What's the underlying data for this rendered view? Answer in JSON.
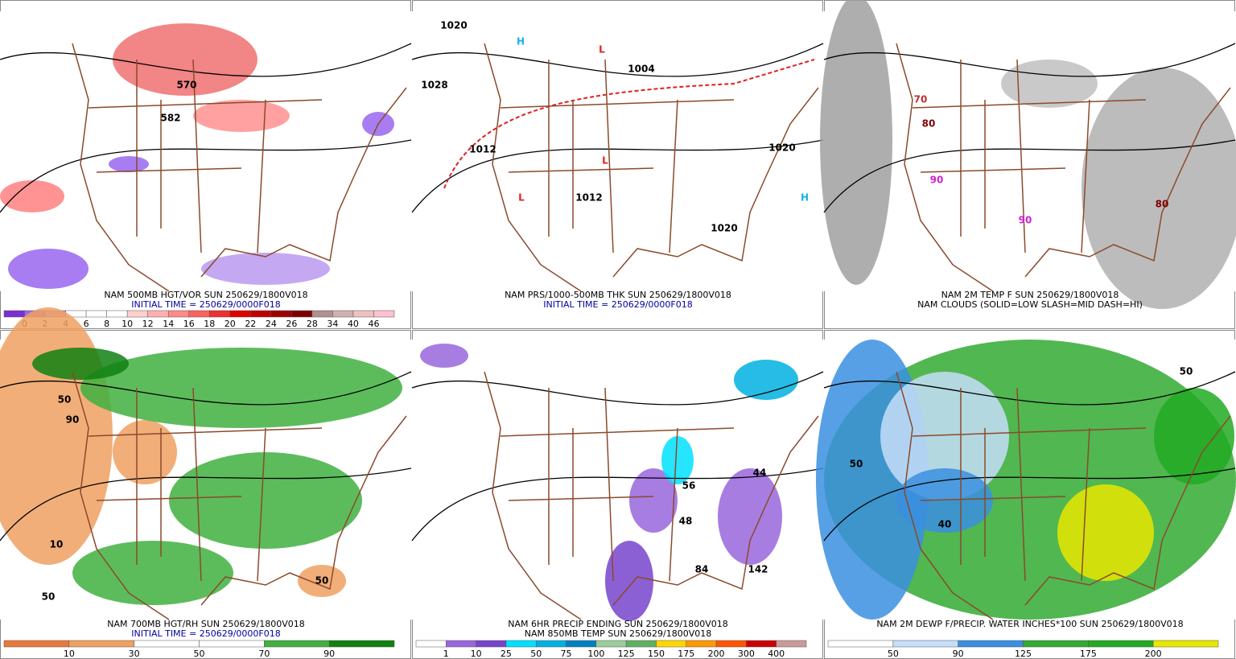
{
  "panels": [
    {
      "caption": [
        "NAM 500MB HGT/VOR SUN 250629/1800V018",
        "INITIAL TIME = 250629/0000F018"
      ],
      "caption_colors": [
        "#000000",
        "#0000a0"
      ],
      "labels": [
        "570",
        "582"
      ],
      "label_colors": [
        "#000000",
        "#000000"
      ],
      "colorbar": {
        "ticks": [
          0,
          2,
          4,
          6,
          8,
          10,
          12,
          14,
          16,
          18,
          20,
          22,
          24,
          26,
          28,
          34,
          40,
          46
        ],
        "colors": [
          "#7b2fd0",
          "#9966ee",
          "#bb99f0",
          "#ffffff",
          "#ffffff",
          "#ffffff",
          "#ffd0d0",
          "#ffb0b0",
          "#ff8a8a",
          "#ff6060",
          "#f03030",
          "#e00000",
          "#c00000",
          "#a00000",
          "#800000",
          "#b09090",
          "#d0b0b0",
          "#f0c0c0",
          "#ffc0d0"
        ]
      }
    },
    {
      "caption": [
        "NAM PRS/1000-500MB THK SUN 250629/1800V018",
        "INITIAL TIME = 250629/0000F018"
      ],
      "caption_colors": [
        "#000000",
        "#0000a0"
      ],
      "labels": [
        "1020",
        "1028",
        "1012",
        "1004",
        "1012",
        "1020",
        "1020",
        "H",
        "H",
        "L",
        "L",
        "L"
      ],
      "label_colors": [
        "#000000",
        "#000000",
        "#000000",
        "#000000",
        "#000000",
        "#000000",
        "#000000",
        "#1ab0e8",
        "#1ab0e8",
        "#e02020",
        "#e02020",
        "#e02020"
      ]
    },
    {
      "caption": [
        "NAM 2M TEMP F SUN 250629/1800V018",
        "NAM CLOUDS (SOLID=LOW SLASH=MID DASH=HI)"
      ],
      "caption_colors": [
        "#000000",
        "#000000"
      ],
      "labels": [
        "70",
        "80",
        "90",
        "80",
        "90"
      ],
      "label_colors": [
        "#c03030",
        "#800000",
        "#d020d0",
        "#800000",
        "#d020d0"
      ]
    },
    {
      "caption": [
        "NAM 700MB HGT/RH SUN 250629/1800V018",
        "INITIAL TIME = 250629/0000F018"
      ],
      "caption_colors": [
        "#000000",
        "#0000a0"
      ],
      "labels": [
        "50",
        "90",
        "10",
        "50",
        "50"
      ],
      "label_colors": [
        "#000000",
        "#000000",
        "#000000",
        "#000000",
        "#000000"
      ],
      "colorbar": {
        "ticks": [
          10,
          30,
          50,
          70,
          90
        ],
        "colors": [
          "#e8783c",
          "#f0a060",
          "#ffffff",
          "#ffffff",
          "#40b040",
          "#108010"
        ]
      }
    },
    {
      "caption": [
        "NAM 6HR PRECIP ENDING SUN 250629/1800V018",
        "NAM 850MB TEMP SUN 250629/1800V018"
      ],
      "caption_colors": [
        "#000000",
        "#000000"
      ],
      "labels": [
        "56",
        "48",
        "84",
        "142",
        "44"
      ],
      "label_colors": [
        "#000000",
        "#000000",
        "#000000",
        "#000000",
        "#000000"
      ],
      "colorbar": {
        "ticks": [
          1,
          10,
          25,
          50,
          75,
          100,
          125,
          150,
          175,
          200,
          300,
          400
        ],
        "colors": [
          "#ffffff",
          "#9966dd",
          "#7744cc",
          "#00e0ff",
          "#00b0e0",
          "#0080c0",
          "#9bcd9b",
          "#60b060",
          "#ffd700",
          "#ff9900",
          "#ff5500",
          "#cc0000",
          "#cc9999"
        ]
      }
    },
    {
      "caption": [
        "NAM 2M DEWP F/PRECIP. WATER INCHES*100 SUN 250629/1800V018"
      ],
      "caption_colors": [
        "#000000"
      ],
      "labels": [
        "50",
        "40",
        "50"
      ],
      "label_colors": [
        "#000000",
        "#000000",
        "#000000"
      ],
      "colorbar": {
        "ticks": [
          50,
          90,
          125,
          175,
          200
        ],
        "colors": [
          "#ffffff",
          "#c6def8",
          "#3a8fe0",
          "#33aa33",
          "#22aa22",
          "#e8e800"
        ]
      }
    }
  ]
}
